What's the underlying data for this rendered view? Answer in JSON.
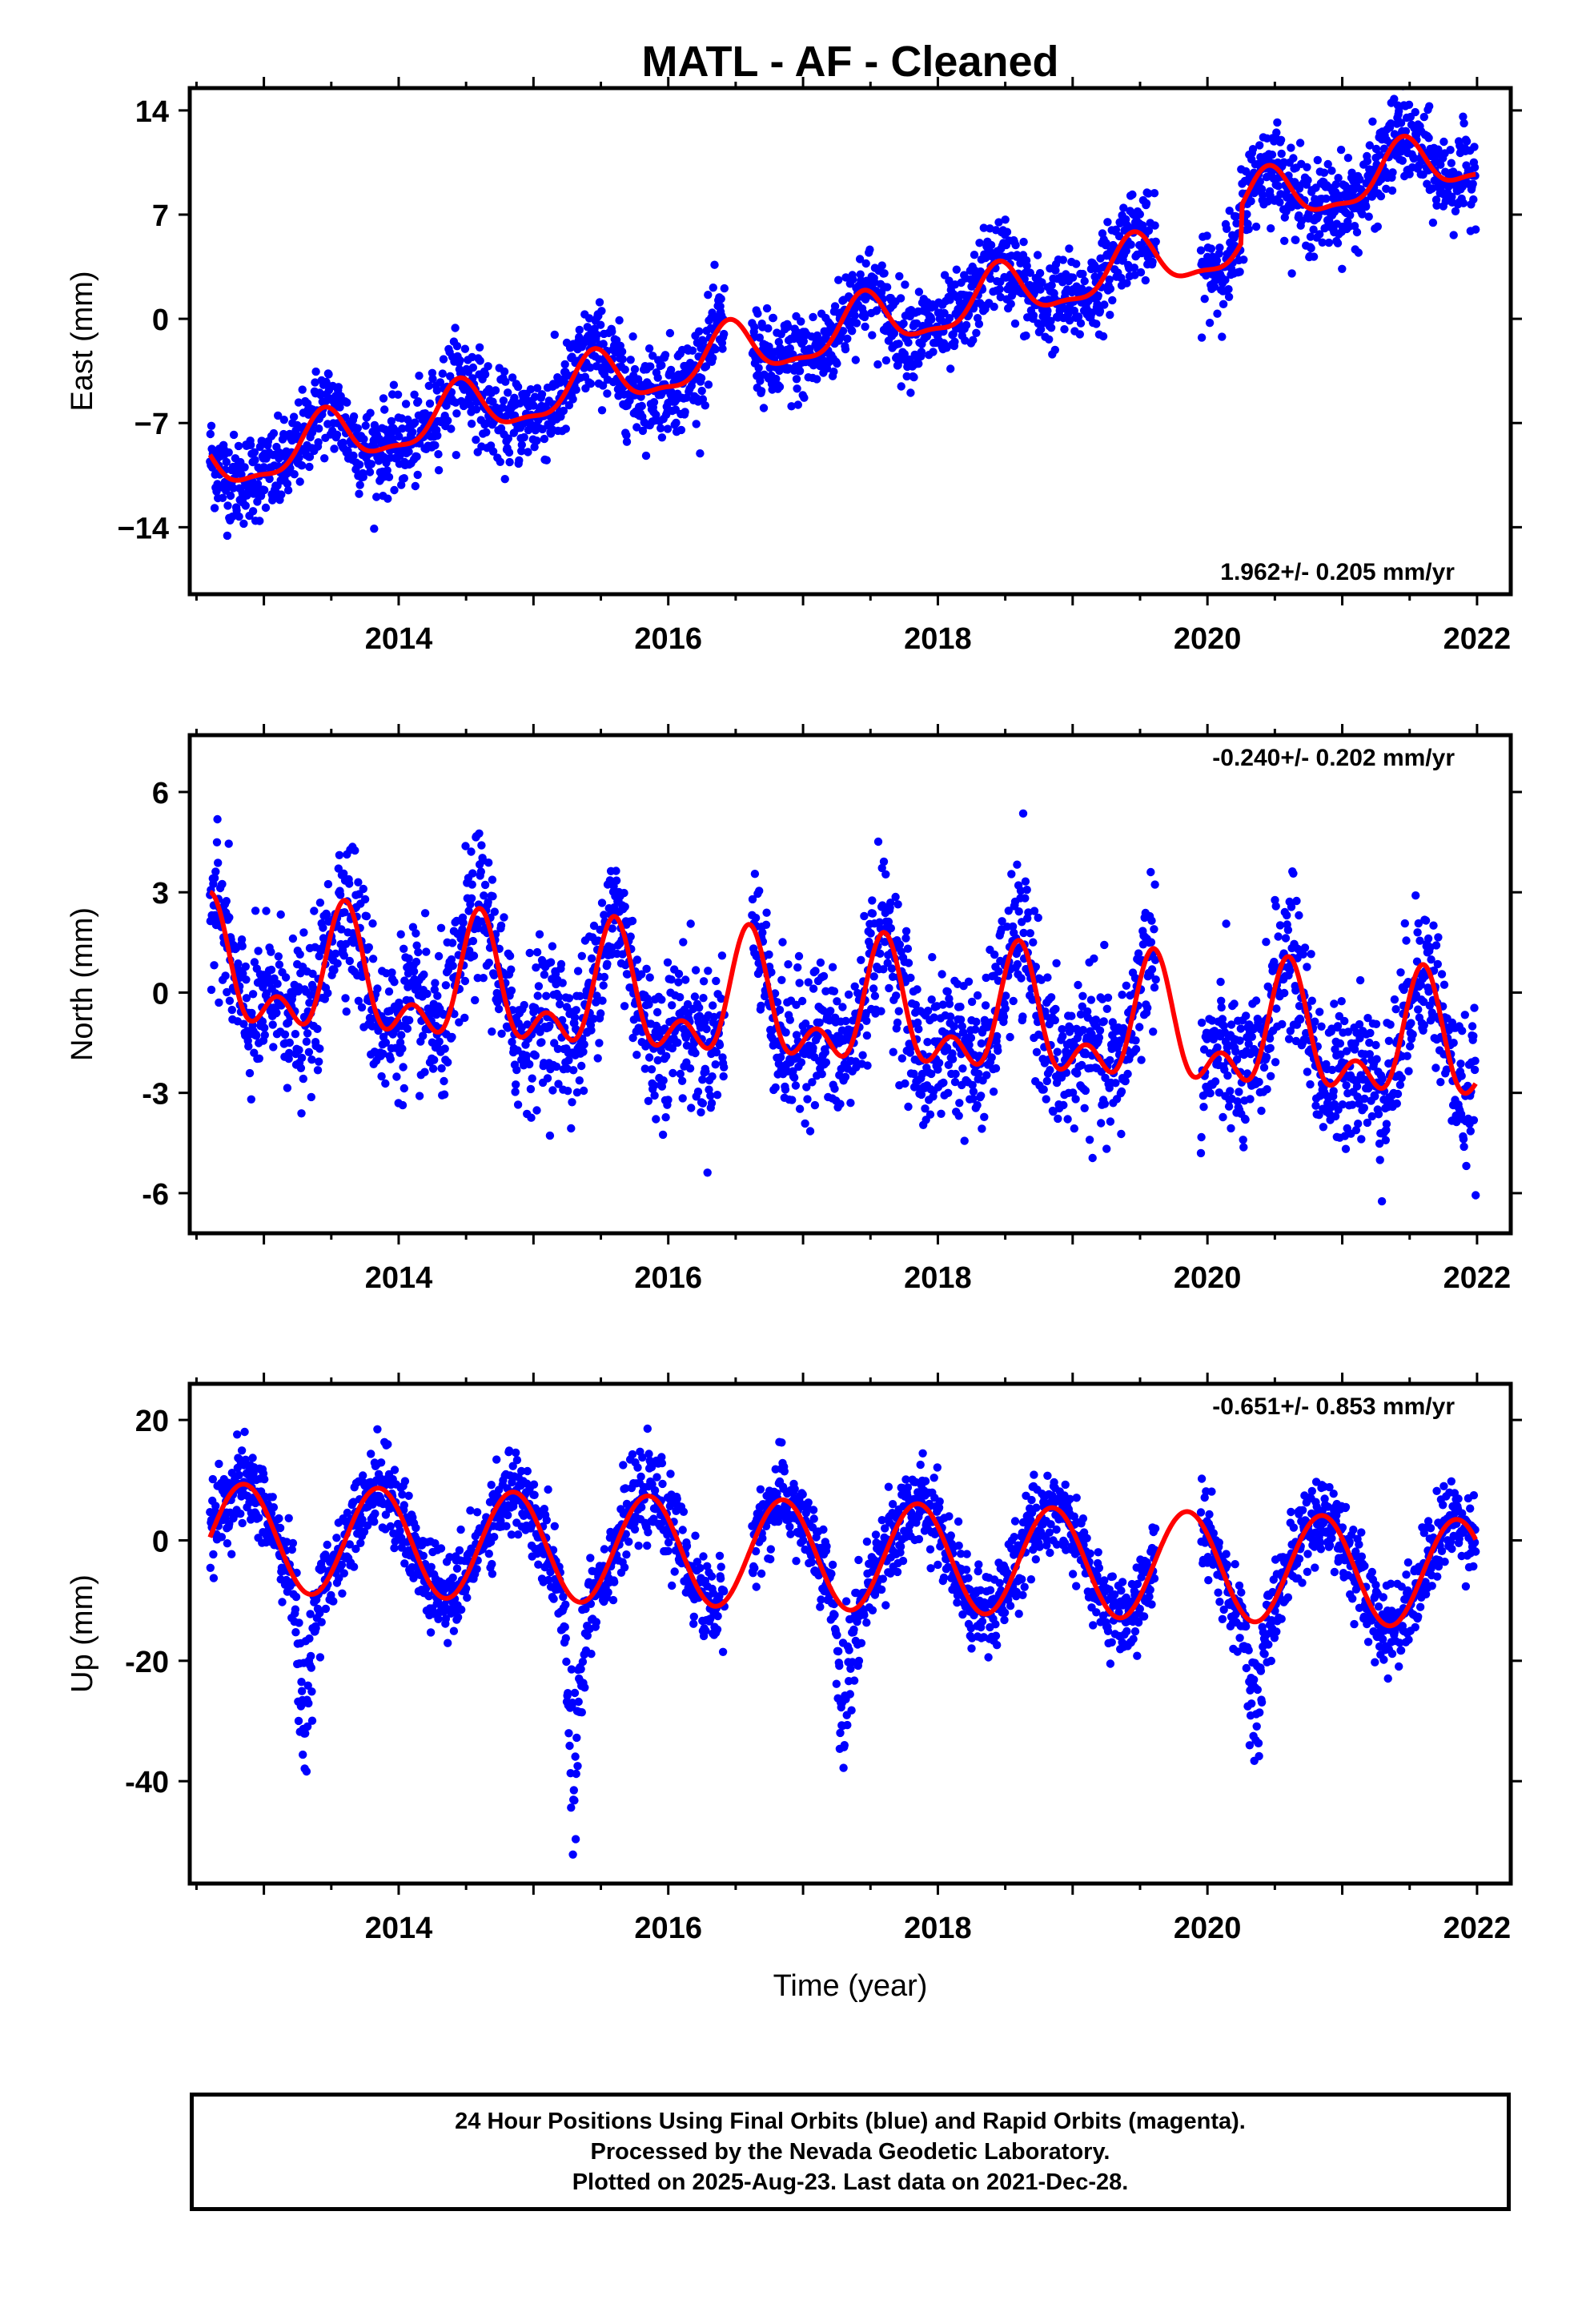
{
  "figure": {
    "title": "MATL  - AF - Cleaned",
    "xlabel": "Time (year)"
  },
  "colors": {
    "points": "#0000ff",
    "model": "#ff0000",
    "frame": "#000000"
  },
  "chart_data": [
    {
      "type": "scatter",
      "name": "east",
      "ylabel": "East (mm)",
      "rate_label": "1.962+/- 0.205 mm/yr",
      "rate_position": "bottom-right",
      "xlim": [
        2012.45,
        2022.25
      ],
      "ylim": [
        -18.5,
        15.5
      ],
      "x_ticks": [
        2014,
        2016,
        2018,
        2020,
        2022
      ],
      "x_tick_labels": [
        "2014",
        "2016",
        "2018",
        "2020",
        "2022"
      ],
      "y_ticks": [
        14,
        7,
        0,
        -7,
        -14
      ],
      "y_tick_labels": [
        "14",
        "7",
        "0",
        "−7",
        "−14"
      ],
      "data_range": [
        2012.6,
        2021.99
      ],
      "gaps": [
        [
          2016.42,
          2016.62
        ],
        [
          2019.62,
          2019.95
        ]
      ],
      "model": {
        "intercept": -10.0,
        "rate": 1.962,
        "annual_amp": 1.8,
        "annual_phase_peak": 0.45,
        "semiannual_amp": 0.6,
        "offsets": [
          {
            "epoch": 2020.25,
            "value": 2.5
          }
        ]
      },
      "scatter_sd": 1.5,
      "n_points": 2700
    },
    {
      "type": "scatter",
      "name": "north",
      "ylabel": "North (mm)",
      "rate_label": "-0.240+/- 0.202 mm/yr",
      "rate_position": "top-right",
      "xlim": [
        2012.45,
        2022.25
      ],
      "ylim": [
        -7.2,
        7.7
      ],
      "x_ticks": [
        2014,
        2016,
        2018,
        2020,
        2022
      ],
      "x_tick_labels": [
        "2014",
        "2016",
        "2018",
        "2020",
        "2022"
      ],
      "y_ticks": [
        6,
        3,
        0,
        -3,
        -6
      ],
      "y_tick_labels": [
        "6",
        "3",
        "0",
        "-3",
        "-6"
      ],
      "data_range": [
        2012.6,
        2021.99
      ],
      "gaps": [
        [
          2016.42,
          2016.62
        ],
        [
          2019.62,
          2019.95
        ]
      ],
      "model": {
        "intercept": 0.5,
        "rate": -0.24,
        "annual_amp": 1.5,
        "annual_phase_peak": 0.6,
        "semiannual_amp": 1.0,
        "offsets": []
      },
      "scatter_sd": 1.1,
      "n_points": 2700
    },
    {
      "type": "scatter",
      "name": "up",
      "ylabel": "Up (mm)",
      "rate_label": "-0.651+/- 0.853 mm/yr",
      "rate_position": "top-right",
      "xlim": [
        2012.45,
        2022.25
      ],
      "ylim": [
        -57,
        26
      ],
      "x_ticks": [
        2014,
        2016,
        2018,
        2020,
        2022
      ],
      "x_tick_labels": [
        "2014",
        "2016",
        "2018",
        "2020",
        "2022"
      ],
      "y_ticks": [
        20,
        0,
        -20,
        -40
      ],
      "y_tick_labels": [
        "20",
        "0",
        "-20",
        "-40"
      ],
      "data_range": [
        2012.6,
        2021.99
      ],
      "gaps": [
        [
          2016.42,
          2016.62
        ],
        [
          2019.62,
          2019.95
        ]
      ],
      "model": {
        "intercept": 0.5,
        "rate": -0.651,
        "annual_amp": 9.0,
        "annual_phase_peak": 0.85,
        "semiannual_amp": 0.0,
        "offsets": []
      },
      "scatter_sd": 3.5,
      "spring_dips": {
        "epochs": [
          2013.3,
          2015.3,
          2017.3,
          2020.35
        ],
        "depth": [
          30,
          32,
          22,
          20
        ]
      },
      "n_points": 2700
    }
  ],
  "footer": {
    "line1": "24 Hour Positions Using Final Orbits (blue) and Rapid Orbits (magenta).",
    "line2": "Processed by the Nevada Geodetic Laboratory.",
    "line3": "Plotted on 2025-Aug-23. Last data on 2021-Dec-28."
  }
}
